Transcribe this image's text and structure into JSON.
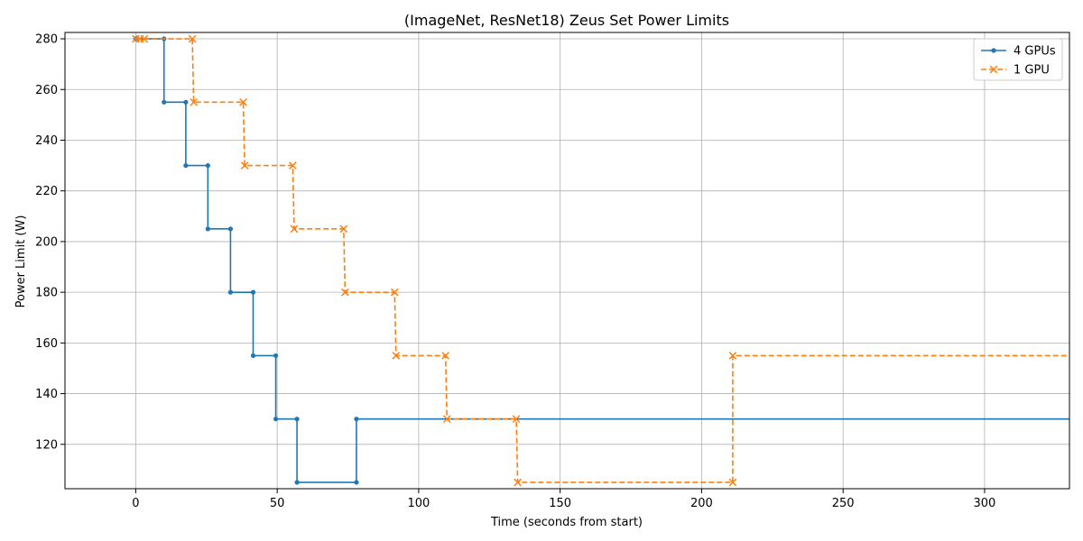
{
  "chart_data": {
    "type": "line",
    "title": "(ImageNet, ResNet18) Zeus Set Power Limits",
    "xlabel": "Time (seconds from start)",
    "ylabel": "Power Limit (W)",
    "xlim": [
      -25,
      330
    ],
    "ylim": [
      102.5,
      282.5
    ],
    "xticks": [
      0,
      50,
      100,
      150,
      200,
      250,
      300
    ],
    "yticks": [
      120,
      140,
      160,
      180,
      200,
      220,
      240,
      260,
      280
    ],
    "grid": true,
    "legend_position": "top-right",
    "step": "post",
    "series": [
      {
        "name": "4 GPUs",
        "color": "#1f77b4",
        "line_style": "solid",
        "marker": "dot",
        "x": [
          0,
          10,
          10,
          17.7,
          17.7,
          25.5,
          25.5,
          33.5,
          33.5,
          41.5,
          41.5,
          49.5,
          49.5,
          57,
          57,
          78,
          78
        ],
        "y": [
          280,
          280,
          255,
          255,
          230,
          230,
          205,
          205,
          180,
          180,
          155,
          155,
          130,
          130,
          105,
          105,
          130
        ],
        "extends_to_x": 330
      },
      {
        "name": "1 GPU",
        "color": "#ff7f0e",
        "line_style": "dashed",
        "marker": "x",
        "x": [
          0,
          1.5,
          3,
          20,
          20.5,
          38,
          38.5,
          55.5,
          56,
          73.5,
          74,
          91.5,
          92,
          109.5,
          110,
          134.5,
          135,
          211,
          211
        ],
        "y": [
          280,
          280,
          280,
          280,
          255,
          255,
          230,
          230,
          205,
          205,
          180,
          180,
          155,
          155,
          130,
          130,
          105,
          105,
          155
        ],
        "extends_to_x": 330
      }
    ]
  }
}
